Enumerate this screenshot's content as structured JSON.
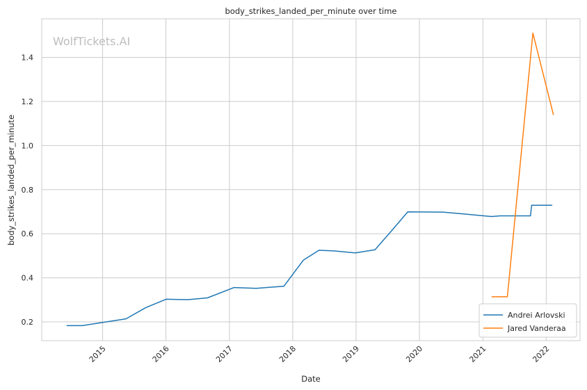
{
  "chart_data": {
    "type": "line",
    "title": "body_strikes_landed_per_minute over time",
    "xlabel": "Date",
    "ylabel": "body_strikes_landed_per_minute",
    "watermark": "WolfTickets.AI",
    "x_type": "date",
    "xlim": [
      "2014-01-15",
      "2022-07-15"
    ],
    "ylim": [
      0.115,
      1.575
    ],
    "x_ticks": [
      {
        "date": "2015-01-01",
        "label": "2015"
      },
      {
        "date": "2016-01-01",
        "label": "2016"
      },
      {
        "date": "2017-01-01",
        "label": "2017"
      },
      {
        "date": "2018-01-01",
        "label": "2018"
      },
      {
        "date": "2019-01-01",
        "label": "2019"
      },
      {
        "date": "2020-01-01",
        "label": "2020"
      },
      {
        "date": "2021-01-01",
        "label": "2021"
      },
      {
        "date": "2022-01-01",
        "label": "2022"
      }
    ],
    "y_ticks": [
      {
        "value": 0.2,
        "label": "0.2"
      },
      {
        "value": 0.4,
        "label": "0.4"
      },
      {
        "value": 0.6,
        "label": "0.6"
      },
      {
        "value": 0.8,
        "label": "0.8"
      },
      {
        "value": 1.0,
        "label": "1.0"
      },
      {
        "value": 1.2,
        "label": "1.2"
      },
      {
        "value": 1.4,
        "label": "1.4"
      }
    ],
    "grid": true,
    "legend_position": "bottom-right",
    "series": [
      {
        "name": "Andrei Arlovski",
        "color": "#1f77b4",
        "points": [
          {
            "x": "2014-06-07",
            "y": 0.183
          },
          {
            "x": "2014-09-06",
            "y": 0.183
          },
          {
            "x": "2015-01-03",
            "y": 0.198
          },
          {
            "x": "2015-05-16",
            "y": 0.214
          },
          {
            "x": "2015-09-05",
            "y": 0.264
          },
          {
            "x": "2016-01-02",
            "y": 0.303
          },
          {
            "x": "2016-05-08",
            "y": 0.301
          },
          {
            "x": "2016-08-27",
            "y": 0.309
          },
          {
            "x": "2017-01-28",
            "y": 0.356
          },
          {
            "x": "2017-06-03",
            "y": 0.352
          },
          {
            "x": "2017-11-11",
            "y": 0.362
          },
          {
            "x": "2018-03-03",
            "y": 0.48
          },
          {
            "x": "2018-06-01",
            "y": 0.525
          },
          {
            "x": "2018-08-25",
            "y": 0.522
          },
          {
            "x": "2018-12-29",
            "y": 0.513
          },
          {
            "x": "2019-04-20",
            "y": 0.527
          },
          {
            "x": "2019-07-20",
            "y": 0.609
          },
          {
            "x": "2019-10-26",
            "y": 0.699
          },
          {
            "x": "2020-05-16",
            "y": 0.698
          },
          {
            "x": "2020-09-12",
            "y": 0.69
          },
          {
            "x": "2021-02-20",
            "y": 0.678
          },
          {
            "x": "2021-04-10",
            "y": 0.681
          },
          {
            "x": "2021-10-02",
            "y": 0.681
          },
          {
            "x": "2021-10-09",
            "y": 0.729
          },
          {
            "x": "2022-02-05",
            "y": 0.729
          }
        ]
      },
      {
        "name": "Jared Vanderaa",
        "color": "#ff7f0e",
        "points": [
          {
            "x": "2021-02-20",
            "y": 0.314
          },
          {
            "x": "2021-05-22",
            "y": 0.314
          },
          {
            "x": "2021-10-16",
            "y": 1.51
          },
          {
            "x": "2022-02-12",
            "y": 1.139
          }
        ]
      }
    ]
  }
}
